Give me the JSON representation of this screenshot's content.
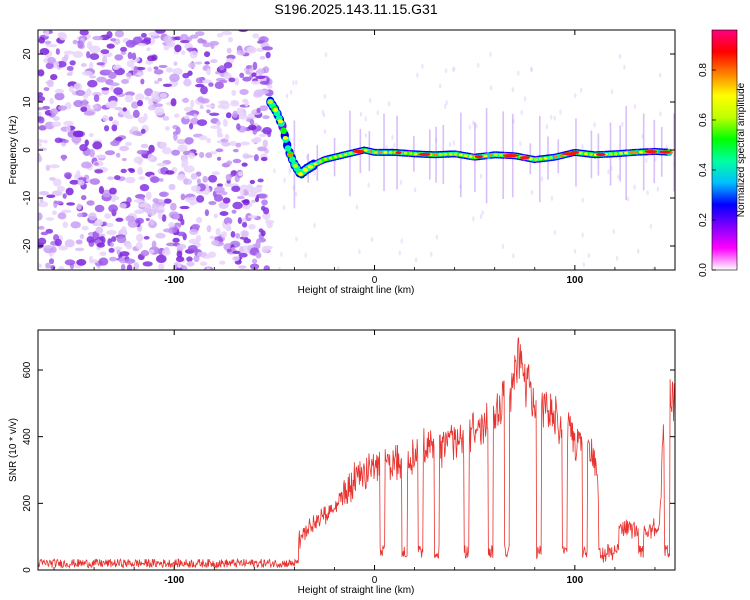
{
  "title": "S196.2025.143.11.15.G31",
  "chart_data": [
    {
      "type": "heatmap",
      "title": "S196.2025.143.11.15.G31",
      "xlabel": "Height of straight line (km)",
      "ylabel": "Frequency (Hz)",
      "xlim": [
        -168,
        150
      ],
      "ylim": [
        -25,
        25
      ],
      "x_ticks": [
        "-100",
        "0",
        "100"
      ],
      "y_ticks": [
        "20",
        "10",
        "0",
        "-10",
        "-20"
      ],
      "grid": false,
      "noise_region_x": [
        -168,
        -52
      ],
      "signal_track": {
        "x": [
          -52,
          -49,
          -46,
          -43,
          -40,
          -37,
          -34,
          -30,
          -25,
          -20,
          -15,
          -10,
          -5,
          0,
          10,
          20,
          30,
          40,
          50,
          60,
          70,
          80,
          90,
          100,
          110,
          120,
          130,
          140,
          148
        ],
        "frequency": [
          10,
          8,
          5,
          0,
          -3,
          -5,
          -4,
          -3,
          -2,
          -1.5,
          -1,
          -0.5,
          0,
          -0.5,
          -0.5,
          -0.8,
          -1,
          -0.8,
          -1.5,
          -1,
          -1.2,
          -2,
          -1.5,
          -0.5,
          -1,
          -0.8,
          -0.5,
          -0.3,
          -0.5
        ]
      },
      "colorbar": {
        "label": "Normalized spectral amplitude",
        "ticks": [
          "0.0",
          "0.2",
          "0.4",
          "0.6",
          "0.8"
        ],
        "range": [
          0,
          0.96
        ],
        "colormap": [
          "#ffffff",
          "#ff00ff",
          "#8000ff",
          "#0000ff",
          "#00c0ff",
          "#00ffa0",
          "#00ff00",
          "#c0ff00",
          "#ffff00",
          "#ff8000",
          "#ff0000",
          "#ff0080"
        ]
      }
    },
    {
      "type": "line",
      "xlabel": "Height of straight line (km)",
      "ylabel": "SNR (10 * v/v)",
      "xlim": [
        -168,
        150
      ],
      "ylim": [
        0,
        720
      ],
      "x_ticks": [
        "-100",
        "0",
        "100"
      ],
      "y_ticks": [
        "0",
        "200",
        "400",
        "600"
      ],
      "grid": false,
      "color": "#e8322e",
      "series_envelope": {
        "x": [
          -168,
          -140,
          -100,
          -60,
          -40,
          -38,
          -30,
          -20,
          -10,
          0,
          10,
          20,
          30,
          40,
          50,
          60,
          70,
          72,
          80,
          90,
          100,
          110,
          112,
          120,
          122,
          130,
          142,
          145,
          150
        ],
        "y": [
          20,
          22,
          20,
          20,
          22,
          100,
          160,
          220,
          310,
          350,
          360,
          400,
          420,
          440,
          470,
          520,
          640,
          720,
          560,
          520,
          460,
          380,
          240,
          100,
          150,
          140,
          140,
          560,
          600
        ]
      }
    }
  ]
}
